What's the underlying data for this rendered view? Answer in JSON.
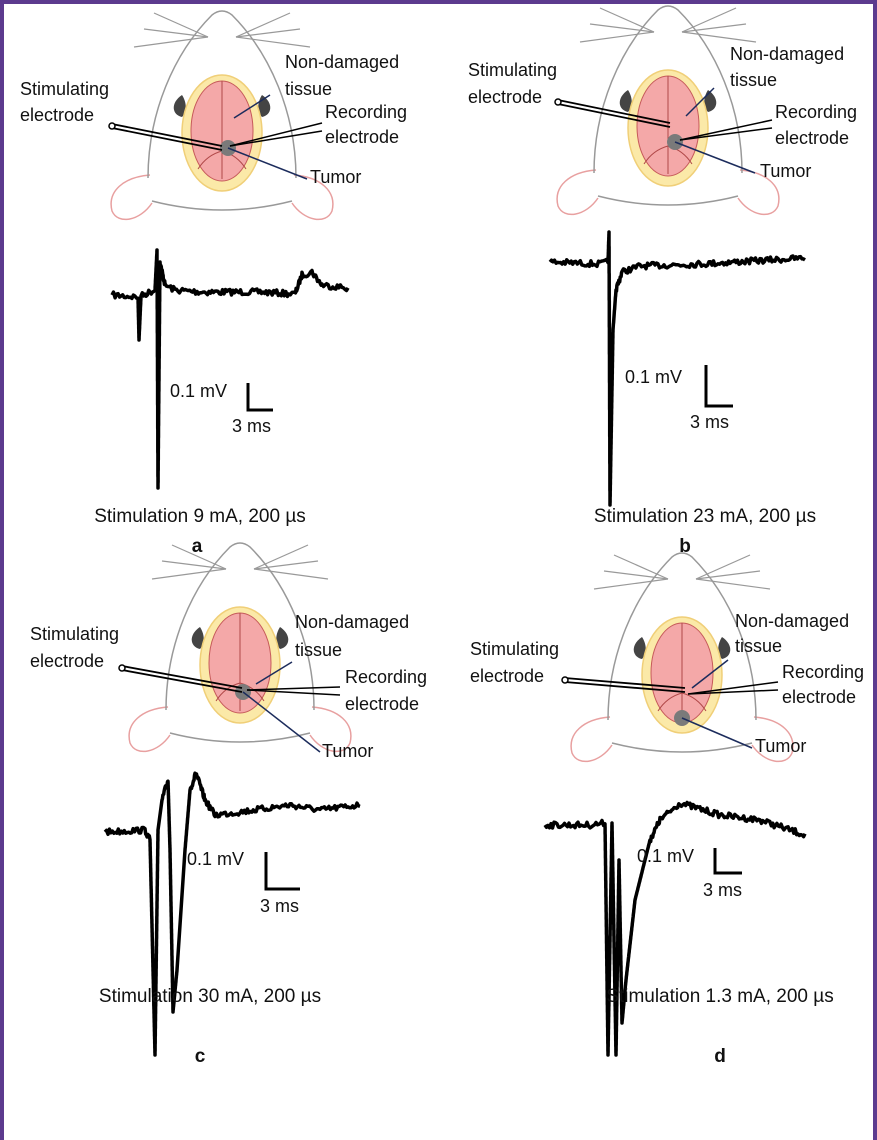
{
  "panels": [
    {
      "letter": "a",
      "caption": "Stimulation 9 mA, 200 µs",
      "stimulating_electrode": [
        "Stimulating",
        "electrode"
      ],
      "non_damaged_tissue": [
        "Non-damaged",
        "tissue"
      ],
      "recording_electrode": [
        "Recording",
        "electrode"
      ],
      "tumor": "Tumor",
      "scale_voltage": "0.1 mV",
      "scale_time": "3 ms"
    },
    {
      "letter": "b",
      "caption": "Stimulation 23 mA, 200 µs",
      "stimulating_electrode": [
        "Stimulating",
        "electrode"
      ],
      "non_damaged_tissue": [
        "Non-damaged",
        "tissue"
      ],
      "recording_electrode": [
        "Recording",
        "electrode"
      ],
      "tumor": "Tumor",
      "scale_voltage": "0.1 mV",
      "scale_time": "3 ms"
    },
    {
      "letter": "c",
      "caption": "Stimulation 30 mA, 200 µs",
      "stimulating_electrode": [
        "Stimulating",
        "electrode"
      ],
      "non_damaged_tissue": [
        "Non-damaged",
        "tissue"
      ],
      "recording_electrode": [
        "Recording",
        "electrode"
      ],
      "tumor": "Tumor",
      "scale_voltage": "0.1 mV",
      "scale_time": "3 ms"
    },
    {
      "letter": "d",
      "caption": "Stimulation 1.3 mA, 200 µs",
      "stimulating_electrode": [
        "Stimulating",
        "electrode"
      ],
      "non_damaged_tissue": [
        "Non-damaged",
        "tissue"
      ],
      "recording_electrode": [
        "Recording",
        "electrode"
      ],
      "tumor": "Tumor",
      "scale_voltage": "0.1 mV",
      "scale_time": "3 ms"
    }
  ]
}
